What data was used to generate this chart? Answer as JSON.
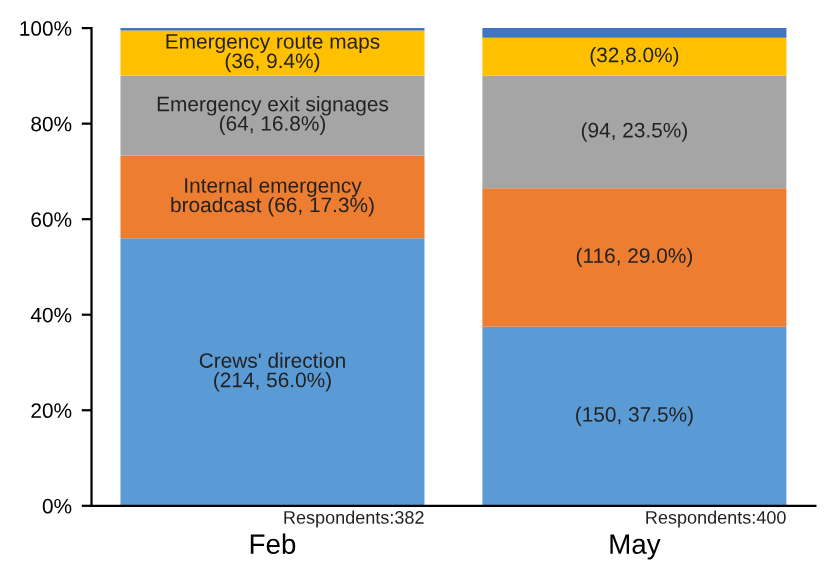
{
  "chart_data": {
    "type": "bar",
    "stacked": true,
    "categories": [
      "Feb",
      "May"
    ],
    "series": [
      {
        "color": "#5b9bd5",
        "values": [
          56.0,
          37.5
        ],
        "value_labels": [
          "Crews' direction\n(214, 56.0%)",
          "(150, 37.5%)"
        ]
      },
      {
        "color": "#ed7d31",
        "values": [
          17.3,
          29.0
        ],
        "value_labels": [
          "Internal emergency\nbroadcast (66, 17.3%)",
          "(116, 29.0%)"
        ]
      },
      {
        "color": "#a5a5a5",
        "values": [
          16.8,
          23.5
        ],
        "value_labels": [
          "Emergency exit signages\n(64, 16.8%)",
          "(94, 23.5%)"
        ]
      },
      {
        "color": "#ffc000",
        "values": [
          9.4,
          8.0
        ],
        "value_labels": [
          "Emergency route maps\n(36, 9.4%)",
          "(32,8.0%)"
        ]
      },
      {
        "color": "#4472c4",
        "values": [
          0.5,
          2.0
        ]
      }
    ],
    "ylim": [
      0,
      100
    ],
    "yticks": [
      {
        "value": 0,
        "label": "0%"
      },
      {
        "value": 20,
        "label": "20%"
      },
      {
        "value": 40,
        "label": "40%"
      },
      {
        "value": 60,
        "label": "60%"
      },
      {
        "value": 80,
        "label": "80%"
      },
      {
        "value": 100,
        "label": "100%"
      }
    ],
    "grid": false,
    "legend": false,
    "annotations": [
      "Respondents:382",
      "Respondents:400"
    ]
  }
}
